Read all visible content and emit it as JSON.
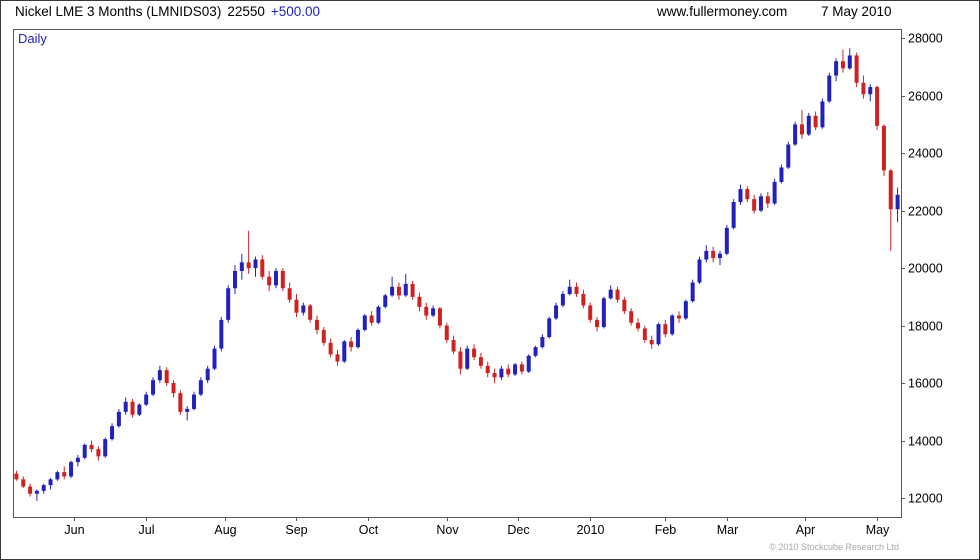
{
  "header": {
    "instrument_title": "Nickel LME 3 Months (LMNIDS03)",
    "last_price": "22550",
    "change": "+500.00",
    "website": "www.fullermoney.com",
    "date": "7 May 2010"
  },
  "chart": {
    "frequency_label": "Daily",
    "copyright": "© 2010 Stockcube Research Ltd",
    "colors": {
      "up": "#2222bb",
      "down": "#cc2222",
      "frame": "#555555",
      "label": "#000000"
    }
  },
  "chart_data": {
    "type": "candlestick",
    "title": "Nickel LME 3 Months (LMNIDS03)",
    "period": "Daily, mid-May 2009 to 7 May 2010",
    "last_close": 22550,
    "change": 500.0,
    "ylim": [
      11340,
      28320
    ],
    "y_ticks": [
      12000,
      14000,
      16000,
      18000,
      20000,
      22000,
      24000,
      26000,
      28000
    ],
    "x_ticks": [
      {
        "label": "Jun",
        "pos": 8.5
      },
      {
        "label": "Jul",
        "pos": 19
      },
      {
        "label": "Aug",
        "pos": 30.5
      },
      {
        "label": "Sep",
        "pos": 41
      },
      {
        "label": "Oct",
        "pos": 51.5
      },
      {
        "label": "Nov",
        "pos": 63
      },
      {
        "label": "Dec",
        "pos": 73.5
      },
      {
        "label": "2010",
        "pos": 84
      },
      {
        "label": "Feb",
        "pos": 95
      },
      {
        "label": "Mar",
        "pos": 104
      },
      {
        "label": "Apr",
        "pos": 115.5
      },
      {
        "label": "May",
        "pos": 126
      }
    ],
    "candles": [
      [
        12850,
        12950,
        12600,
        12650
      ],
      [
        12650,
        12750,
        12350,
        12400
      ],
      [
        12400,
        12500,
        12050,
        12150
      ],
      [
        12150,
        12300,
        11900,
        12250
      ],
      [
        12250,
        12500,
        12150,
        12450
      ],
      [
        12450,
        12700,
        12300,
        12650
      ],
      [
        12650,
        12950,
        12600,
        12900
      ],
      [
        12900,
        13100,
        12650,
        12750
      ],
      [
        12750,
        13300,
        12700,
        13250
      ],
      [
        13250,
        13500,
        13100,
        13400
      ],
      [
        13400,
        13900,
        13350,
        13850
      ],
      [
        13850,
        14000,
        13600,
        13700
      ],
      [
        13700,
        13800,
        13300,
        13450
      ],
      [
        13450,
        14100,
        13400,
        14050
      ],
      [
        14050,
        14600,
        14000,
        14500
      ],
      [
        14500,
        15100,
        14450,
        15000
      ],
      [
        15000,
        15500,
        14900,
        15350
      ],
      [
        15350,
        15450,
        14800,
        14900
      ],
      [
        14900,
        15300,
        14850,
        15250
      ],
      [
        15250,
        15700,
        15200,
        15600
      ],
      [
        15600,
        16200,
        15550,
        16100
      ],
      [
        16100,
        16600,
        16000,
        16450
      ],
      [
        16450,
        16550,
        15900,
        16000
      ],
      [
        16000,
        16100,
        15500,
        15650
      ],
      [
        15650,
        15750,
        14900,
        15000
      ],
      [
        15000,
        15200,
        14700,
        15100
      ],
      [
        15100,
        15700,
        15050,
        15600
      ],
      [
        15600,
        16200,
        15550,
        16100
      ],
      [
        16100,
        16600,
        16000,
        16500
      ],
      [
        16500,
        17300,
        16450,
        17200
      ],
      [
        17200,
        18300,
        17100,
        18200
      ],
      [
        18200,
        19400,
        18100,
        19300
      ],
      [
        19300,
        20100,
        19100,
        19900
      ],
      [
        19900,
        20500,
        19600,
        20200
      ],
      [
        20200,
        21300,
        19800,
        20000
      ],
      [
        20000,
        20400,
        19700,
        20300
      ],
      [
        20300,
        20450,
        19600,
        19700
      ],
      [
        19700,
        19900,
        19200,
        19400
      ],
      [
        19400,
        20000,
        19300,
        19900
      ],
      [
        19900,
        20000,
        19200,
        19300
      ],
      [
        19300,
        19500,
        18800,
        18900
      ],
      [
        18900,
        19100,
        18300,
        18450
      ],
      [
        18450,
        18800,
        18350,
        18700
      ],
      [
        18700,
        18750,
        18100,
        18200
      ],
      [
        18200,
        18350,
        17700,
        17850
      ],
      [
        17850,
        17950,
        17300,
        17400
      ],
      [
        17400,
        17550,
        16900,
        17000
      ],
      [
        17000,
        17150,
        16600,
        16750
      ],
      [
        16750,
        17500,
        16700,
        17450
      ],
      [
        17450,
        17600,
        17100,
        17250
      ],
      [
        17250,
        17900,
        17200,
        17850
      ],
      [
        17850,
        18400,
        17800,
        18350
      ],
      [
        18350,
        18500,
        18000,
        18100
      ],
      [
        18100,
        18700,
        18050,
        18650
      ],
      [
        18650,
        19100,
        18600,
        19050
      ],
      [
        19050,
        19700,
        19000,
        19350
      ],
      [
        19350,
        19500,
        18900,
        19050
      ],
      [
        19050,
        19800,
        19000,
        19450
      ],
      [
        19450,
        19550,
        18900,
        19000
      ],
      [
        19000,
        19150,
        18500,
        18650
      ],
      [
        18650,
        18800,
        18200,
        18350
      ],
      [
        18350,
        18700,
        18300,
        18600
      ],
      [
        18600,
        18650,
        17900,
        18000
      ],
      [
        18000,
        18100,
        17400,
        17500
      ],
      [
        17500,
        17650,
        17000,
        17100
      ],
      [
        17100,
        17250,
        16300,
        16500
      ],
      [
        16500,
        17300,
        16450,
        17200
      ],
      [
        17200,
        17350,
        16800,
        16900
      ],
      [
        16900,
        17050,
        16500,
        16600
      ],
      [
        16600,
        16750,
        16200,
        16350
      ],
      [
        16350,
        16500,
        16000,
        16200
      ],
      [
        16200,
        16600,
        16100,
        16500
      ],
      [
        16500,
        16650,
        16200,
        16300
      ],
      [
        16300,
        16700,
        16250,
        16650
      ],
      [
        16650,
        16750,
        16300,
        16400
      ],
      [
        16400,
        17000,
        16350,
        16950
      ],
      [
        16950,
        17300,
        16900,
        17250
      ],
      [
        17250,
        17700,
        17200,
        17600
      ],
      [
        17600,
        18300,
        17550,
        18250
      ],
      [
        18250,
        18800,
        18200,
        18700
      ],
      [
        18700,
        19200,
        18650,
        19100
      ],
      [
        19100,
        19600,
        19050,
        19350
      ],
      [
        19350,
        19500,
        19000,
        19100
      ],
      [
        19100,
        19250,
        18600,
        18700
      ],
      [
        18700,
        18800,
        18100,
        18200
      ],
      [
        18200,
        18300,
        17800,
        17950
      ],
      [
        17950,
        19000,
        17900,
        18950
      ],
      [
        18950,
        19400,
        18900,
        19250
      ],
      [
        19250,
        19350,
        18800,
        18900
      ],
      [
        18900,
        19000,
        18400,
        18500
      ],
      [
        18500,
        18600,
        18000,
        18100
      ],
      [
        18100,
        18250,
        17800,
        17900
      ],
      [
        17900,
        18000,
        17400,
        17500
      ],
      [
        17500,
        17650,
        17200,
        17350
      ],
      [
        17350,
        18100,
        17300,
        18050
      ],
      [
        18050,
        18200,
        17600,
        17700
      ],
      [
        17700,
        18400,
        17650,
        18350
      ],
      [
        18350,
        18500,
        18100,
        18250
      ],
      [
        18250,
        18900,
        18200,
        18850
      ],
      [
        18850,
        19600,
        18800,
        19500
      ],
      [
        19500,
        20400,
        19450,
        20300
      ],
      [
        20300,
        20800,
        20200,
        20600
      ],
      [
        20600,
        20750,
        20200,
        20350
      ],
      [
        20350,
        20600,
        20100,
        20500
      ],
      [
        20500,
        21500,
        20450,
        21400
      ],
      [
        21400,
        22400,
        21350,
        22300
      ],
      [
        22300,
        22900,
        22200,
        22750
      ],
      [
        22750,
        22850,
        22300,
        22400
      ],
      [
        22400,
        22550,
        21900,
        22000
      ],
      [
        22000,
        22600,
        21950,
        22500
      ],
      [
        22500,
        22650,
        22100,
        22250
      ],
      [
        22250,
        23100,
        22200,
        23000
      ],
      [
        23000,
        23600,
        22950,
        23500
      ],
      [
        23500,
        24400,
        23450,
        24300
      ],
      [
        24300,
        25100,
        24250,
        25000
      ],
      [
        25000,
        25500,
        24500,
        24650
      ],
      [
        24650,
        25400,
        24600,
        25300
      ],
      [
        25300,
        25450,
        24800,
        24900
      ],
      [
        24900,
        25900,
        24850,
        25800
      ],
      [
        25800,
        26800,
        25750,
        26700
      ],
      [
        26700,
        27300,
        26500,
        27200
      ],
      [
        27200,
        27600,
        26800,
        26950
      ],
      [
        26950,
        27650,
        26900,
        27400
      ],
      [
        27400,
        27500,
        26300,
        26450
      ],
      [
        26450,
        26700,
        25900,
        26050
      ],
      [
        26050,
        26400,
        25800,
        26300
      ],
      [
        26300,
        26350,
        24800,
        24950
      ],
      [
        24950,
        25000,
        23200,
        23400
      ],
      [
        23400,
        23450,
        20600,
        22050
      ],
      [
        22050,
        22800,
        21600,
        22550
      ]
    ]
  }
}
